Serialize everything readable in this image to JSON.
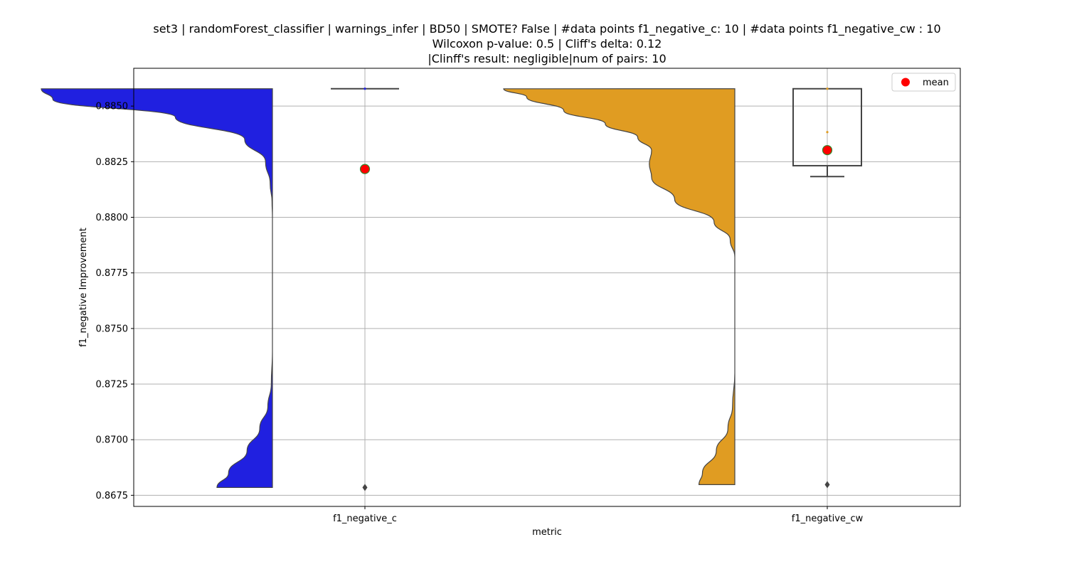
{
  "chart_data": {
    "type": "violin",
    "title_lines": [
      "set3 | randomForest_classifier | warnings_infer | BD50 | SMOTE? False | #data points f1_negative_c: 10 | #data points f1_negative_cw : 10",
      "Wilcoxon p-value: 0.5 | Cliff's delta: 0.12",
      "|Clinff's result: negligible|num of pairs: 10"
    ],
    "xlabel": "metric",
    "ylabel": "f1_negative Improvement",
    "categories": [
      "f1_negative_c",
      "f1_negative_cw"
    ],
    "ylim": [
      0.867,
      0.8867
    ],
    "yticks": [
      0.8675,
      0.87,
      0.8725,
      0.875,
      0.8775,
      0.88,
      0.8825,
      0.885
    ],
    "ytick_labels": [
      "0.8675",
      "0.8700",
      "0.8725",
      "0.8750",
      "0.8775",
      "0.8800",
      "0.8825",
      "0.8850"
    ],
    "grid": true,
    "legend": {
      "position": "upper right",
      "entries": [
        {
          "label": "mean",
          "color": "#ff0000"
        }
      ]
    },
    "series": [
      {
        "category": "f1_negative_c",
        "color": "#2020e0",
        "violin_range": [
          0.86785,
          0.88578
        ],
        "density": [
          [
            0.86785,
            0.24
          ],
          [
            0.8685,
            0.19
          ],
          [
            0.8695,
            0.11
          ],
          [
            0.8705,
            0.055
          ],
          [
            0.8715,
            0.02
          ],
          [
            0.8725,
            0.005
          ],
          [
            0.874,
            0.0
          ],
          [
            0.876,
            0.0
          ],
          [
            0.878,
            0.0
          ],
          [
            0.88,
            0.0
          ],
          [
            0.8807,
            0.002
          ],
          [
            0.8815,
            0.01
          ],
          [
            0.8825,
            0.03
          ],
          [
            0.8835,
            0.12
          ],
          [
            0.8845,
            0.42
          ],
          [
            0.8853,
            0.95
          ],
          [
            0.88578,
            1.0
          ]
        ],
        "box": {
          "q1": 0.88578,
          "median": 0.88578,
          "q3": 0.88578,
          "whisker_low": 0.88578,
          "whisker_high": 0.88578
        },
        "outliers": [
          0.86785
        ],
        "mean": 0.88217
      },
      {
        "category": "f1_negative_cw",
        "color": "#e09c22",
        "violin_range": [
          0.86798,
          0.88578
        ],
        "density": [
          [
            0.86798,
            0.155
          ],
          [
            0.8685,
            0.14
          ],
          [
            0.8695,
            0.08
          ],
          [
            0.8705,
            0.03
          ],
          [
            0.8715,
            0.01
          ],
          [
            0.873,
            0.0
          ],
          [
            0.8765,
            0.0
          ],
          [
            0.8782,
            0.0
          ],
          [
            0.879,
            0.02
          ],
          [
            0.8798,
            0.09
          ],
          [
            0.8808,
            0.26
          ],
          [
            0.8818,
            0.36
          ],
          [
            0.8824,
            0.37
          ],
          [
            0.883,
            0.36
          ],
          [
            0.8836,
            0.42
          ],
          [
            0.8842,
            0.56
          ],
          [
            0.8848,
            0.74
          ],
          [
            0.8854,
            0.9
          ],
          [
            0.88578,
            1.0
          ]
        ],
        "box": {
          "q1": 0.88232,
          "median": 0.88578,
          "q3": 0.88578,
          "whisker_low": 0.88183,
          "whisker_high": 0.88578
        },
        "outliers": [
          0.86798
        ],
        "mean": 0.88302
      }
    ]
  }
}
